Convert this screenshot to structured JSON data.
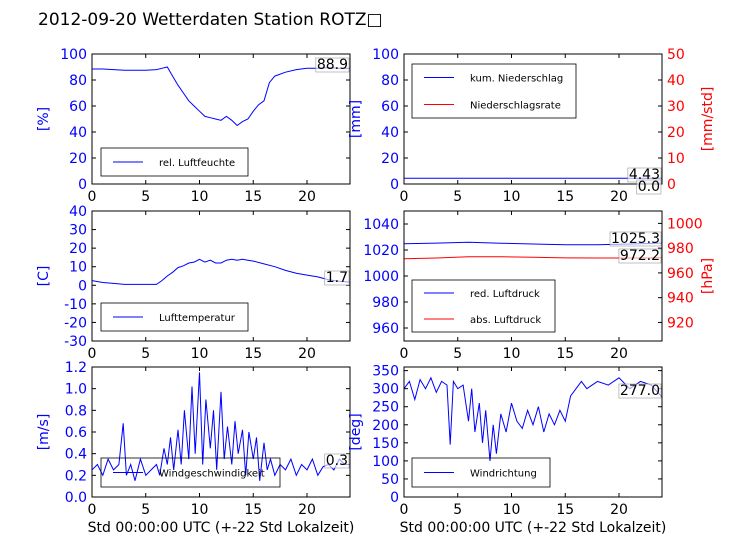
{
  "title": "2012-09-20 Wetterdaten Station ROTZ□",
  "colors": {
    "primary": "#0000ff",
    "secondary": "#ff0000",
    "frame": "#000000"
  },
  "chart_data": [
    {
      "id": "humidity",
      "type": "line",
      "ylabel": "[%]",
      "xlabel": "",
      "xlim": [
        0,
        24
      ],
      "ylim": [
        0,
        100
      ],
      "xticks": [
        0,
        5,
        10,
        15,
        20
      ],
      "yticks": [
        0,
        20,
        40,
        60,
        80,
        100
      ],
      "legend": {
        "position": "bottom-left",
        "entries": [
          "rel. Luftfeuchte"
        ]
      },
      "annotations": [
        {
          "text": "88.9"
        }
      ],
      "series": [
        {
          "name": "rel. Luftfeuchte",
          "color": "#0000ff",
          "axis": "left",
          "x": [
            0,
            1,
            2,
            3,
            4,
            5,
            6,
            6.5,
            7,
            7.5,
            8,
            8.5,
            9,
            9.5,
            10,
            10.5,
            11,
            11.5,
            12,
            12.5,
            13,
            13.5,
            14,
            14.5,
            15,
            15.5,
            16,
            16.5,
            17,
            18,
            19,
            20,
            21,
            22,
            23,
            24
          ],
          "y": [
            88.5,
            88.5,
            88,
            87.5,
            87.5,
            87.5,
            88,
            89,
            90,
            83,
            76,
            70,
            64,
            60,
            56,
            52,
            51,
            50,
            49,
            52,
            49,
            45,
            48,
            50,
            56,
            61,
            64,
            78,
            83,
            86,
            88,
            89,
            89,
            89.5,
            89,
            88.9
          ]
        }
      ]
    },
    {
      "id": "precip",
      "type": "line",
      "ylabel": "[mm]",
      "y2label": "[mm/std]",
      "xlabel": "",
      "xlim": [
        0,
        24
      ],
      "ylim": [
        0,
        100
      ],
      "y2lim": [
        0,
        50
      ],
      "xticks": [
        0,
        5,
        10,
        15,
        20
      ],
      "yticks": [
        0,
        20,
        40,
        60,
        80,
        100
      ],
      "y2ticks": [
        0,
        10,
        20,
        30,
        40,
        50
      ],
      "legend": {
        "position": "top-left",
        "entries": [
          "kum. Niederschlag",
          "Niederschlagsrate"
        ]
      },
      "annotations": [
        {
          "text": "4.43"
        },
        {
          "text": "0.0"
        }
      ],
      "series": [
        {
          "name": "kum. Niederschlag",
          "color": "#0000ff",
          "axis": "left",
          "x": [
            0,
            24
          ],
          "y": [
            4.43,
            4.43
          ]
        },
        {
          "name": "Niederschlagsrate",
          "color": "#ff0000",
          "axis": "right",
          "x": [
            0,
            24
          ],
          "y": [
            0,
            0
          ]
        }
      ]
    },
    {
      "id": "temperature",
      "type": "line",
      "ylabel": "[C]",
      "xlabel": "",
      "xlim": [
        0,
        24
      ],
      "ylim": [
        -30,
        40
      ],
      "xticks": [
        0,
        5,
        10,
        15,
        20
      ],
      "yticks": [
        -30,
        -20,
        -10,
        0,
        10,
        20,
        30,
        40
      ],
      "legend": {
        "position": "bottom-left",
        "entries": [
          "Lufttemperatur"
        ]
      },
      "annotations": [
        {
          "text": "1.7"
        }
      ],
      "series": [
        {
          "name": "Lufttemperatur",
          "color": "#0000ff",
          "axis": "left",
          "x": [
            0,
            1,
            2,
            3,
            4,
            5,
            6,
            6.5,
            7,
            7.5,
            8,
            8.5,
            9,
            9.5,
            10,
            10.5,
            11,
            11.5,
            12,
            12.5,
            13,
            13.5,
            14,
            14.5,
            15,
            16,
            17,
            18,
            19,
            20,
            21,
            22,
            23,
            24
          ],
          "y": [
            2.5,
            1.5,
            1,
            0.5,
            0.5,
            0.5,
            0.5,
            2.5,
            5,
            7,
            9.5,
            10.5,
            12,
            12.5,
            14,
            12.5,
            13.5,
            12,
            12,
            13.5,
            14,
            13.5,
            14,
            13.5,
            13,
            11.5,
            10,
            8,
            6.5,
            5.5,
            4.5,
            3,
            2.2,
            1.7
          ]
        }
      ]
    },
    {
      "id": "pressure",
      "type": "line",
      "ylabel": "",
      "y2label": "[hPa]",
      "xlabel": "",
      "xlim": [
        0,
        24
      ],
      "ylim": [
        950,
        1050
      ],
      "y2lim": [
        905,
        1010
      ],
      "xticks": [
        0,
        5,
        10,
        15,
        20
      ],
      "yticks": [
        960,
        980,
        1000,
        1020,
        1040
      ],
      "y2ticks": [
        920,
        940,
        960,
        980,
        1000
      ],
      "legend": {
        "position": "bottom-left",
        "entries": [
          "red. Luftdruck",
          "abs. Luftdruck"
        ]
      },
      "annotations": [
        {
          "text": "1025.3"
        },
        {
          "text": "972.2"
        }
      ],
      "series": [
        {
          "name": "red. Luftdruck",
          "color": "#0000ff",
          "axis": "left",
          "x": [
            0,
            3,
            6,
            9,
            12,
            15,
            18,
            21,
            24
          ],
          "y": [
            1024.8,
            1025.3,
            1026,
            1025.2,
            1024.6,
            1024,
            1024,
            1024.6,
            1025.3
          ]
        },
        {
          "name": "abs. Luftdruck",
          "color": "#ff0000",
          "axis": "right",
          "x": [
            0,
            3,
            6,
            9,
            12,
            15,
            18,
            21,
            24
          ],
          "y": [
            971.5,
            972,
            973,
            973,
            972.6,
            972.1,
            972,
            972,
            972.2
          ]
        }
      ]
    },
    {
      "id": "windspeed",
      "type": "line",
      "ylabel": "[m/s]",
      "xlabel": "Std 00:00:00 UTC (+-22 Std Lokalzeit)",
      "xlim": [
        0,
        24
      ],
      "ylim": [
        0,
        1.2
      ],
      "xticks": [
        0,
        5,
        10,
        15,
        20
      ],
      "yticks": [
        0.0,
        0.2,
        0.4,
        0.6,
        0.8,
        1.0,
        1.2
      ],
      "legend": {
        "position": "bottom-left",
        "entries": [
          "Windgeschwindigkeit"
        ]
      },
      "annotations": [
        {
          "text": "0.3"
        }
      ],
      "series": [
        {
          "name": "Windgeschwindigkeit",
          "color": "#0000ff",
          "axis": "left",
          "x": [
            0,
            0.5,
            1,
            1.5,
            2,
            2.5,
            2.9,
            3.2,
            3.6,
            4,
            4.5,
            5,
            5.5,
            6,
            6.3,
            6.7,
            7,
            7.3,
            7.6,
            8,
            8.3,
            8.6,
            9,
            9.3,
            9.6,
            10,
            10.3,
            10.6,
            11,
            11.3,
            11.6,
            12,
            12.3,
            12.6,
            13,
            13.3,
            13.6,
            14,
            14.3,
            14.6,
            15,
            15.3,
            15.6,
            16,
            16.3,
            16.6,
            17,
            17.5,
            18,
            18.5,
            19,
            19.5,
            20,
            20.5,
            21,
            21.5,
            22,
            22.5,
            23,
            23.5,
            24
          ],
          "y": [
            0.25,
            0.3,
            0.2,
            0.35,
            0.25,
            0.3,
            0.68,
            0.2,
            0.3,
            0.15,
            0.35,
            0.2,
            0.25,
            0.3,
            0.2,
            0.45,
            0.3,
            0.55,
            0.25,
            0.62,
            0.3,
            0.8,
            0.35,
            1.02,
            0.4,
            1.15,
            0.3,
            0.9,
            0.45,
            0.8,
            0.25,
            0.97,
            0.35,
            0.65,
            0.3,
            0.7,
            0.4,
            0.62,
            0.2,
            0.6,
            0.35,
            0.55,
            0.15,
            0.5,
            0.25,
            0.35,
            0.2,
            0.3,
            0.25,
            0.35,
            0.2,
            0.3,
            0.25,
            0.35,
            0.2,
            0.28,
            0.3,
            0.25,
            0.35,
            0.3,
            0.3
          ]
        }
      ]
    },
    {
      "id": "winddir",
      "type": "line",
      "ylabel": "[deg]",
      "xlabel": "Std 00:00:00 UTC (+-22 Std Lokalzeit)",
      "xlim": [
        0,
        24
      ],
      "ylim": [
        0,
        360
      ],
      "xticks": [
        0,
        5,
        10,
        15,
        20
      ],
      "yticks": [
        0,
        50,
        100,
        150,
        200,
        250,
        300,
        350
      ],
      "legend": {
        "position": "bottom-left",
        "entries": [
          "Windrichtung"
        ]
      },
      "annotations": [
        {
          "text": "277.0"
        }
      ],
      "series": [
        {
          "name": "Windrichtung",
          "color": "#0000ff",
          "axis": "left",
          "x": [
            0,
            0.5,
            1,
            1.5,
            2,
            2.5,
            3,
            3.5,
            4,
            4.3,
            4.6,
            5,
            5.5,
            6,
            6.3,
            6.6,
            7,
            7.3,
            7.6,
            8,
            8.3,
            8.6,
            9,
            9.5,
            10,
            10.5,
            11,
            11.5,
            12,
            12.5,
            13,
            13.5,
            14,
            14.5,
            15,
            15.5,
            16,
            16.5,
            17,
            18,
            19,
            20,
            21,
            22,
            23,
            24
          ],
          "y": [
            300,
            320,
            270,
            325,
            300,
            330,
            290,
            320,
            310,
            145,
            320,
            300,
            310,
            210,
            300,
            180,
            260,
            150,
            240,
            100,
            200,
            120,
            230,
            180,
            260,
            210,
            190,
            240,
            200,
            250,
            180,
            230,
            200,
            240,
            210,
            280,
            300,
            320,
            300,
            320,
            310,
            330,
            300,
            320,
            310,
            277
          ]
        }
      ]
    }
  ]
}
